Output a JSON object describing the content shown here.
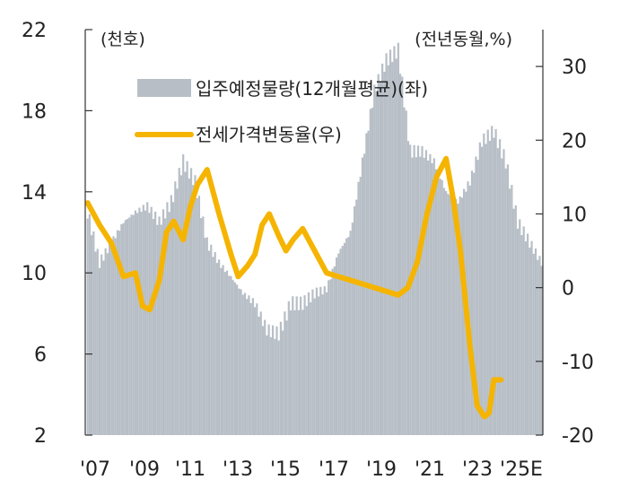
{
  "chart_data": {
    "type": "bar+line",
    "left_unit": "(천호)",
    "right_unit": "(전년동월,%)",
    "y_left": {
      "range": [
        2,
        22
      ],
      "ticks": [
        "22",
        "18",
        "14",
        "10",
        "6",
        "2"
      ]
    },
    "y_right": {
      "range": [
        -20,
        35
      ],
      "ticks": [
        "30",
        "20",
        "10",
        "0",
        "-10",
        "-20"
      ]
    },
    "x_tick_labels": [
      "'07",
      "'09",
      "'11",
      "'13",
      "'15",
      "'17",
      "'19",
      "'21",
      "'23",
      "'25E"
    ],
    "legend": {
      "bar_label": "입주예정물량(12개월평균)(좌)",
      "line_label": "전세가격변동율(우)"
    },
    "colors": {
      "bar": "#b7bec6",
      "line": "#f5b400"
    },
    "series": [
      {
        "name": "입주예정물량(12개월평균)(좌)",
        "axis": "left",
        "t": [
          2007.0,
          2007.5,
          2008.0,
          2008.5,
          2009.0,
          2009.5,
          2010.0,
          2010.5,
          2011.0,
          2011.5,
          2012.0,
          2012.5,
          2013.0,
          2013.5,
          2014.0,
          2014.5,
          2015.0,
          2015.5,
          2016.0,
          2016.5,
          2017.0,
          2017.5,
          2018.0,
          2018.5,
          2019.0,
          2019.5,
          2020.0,
          2020.5,
          2021.0,
          2021.5,
          2022.0,
          2022.5,
          2023.0,
          2023.5,
          2024.0,
          2024.5,
          2025.0,
          2025.5,
          2026.0
        ],
        "values": [
          13.0,
          10.5,
          11.5,
          12.5,
          13.0,
          13.3,
          12.5,
          13.5,
          15.5,
          14.5,
          11.5,
          10.5,
          9.8,
          9.0,
          8.5,
          7.2,
          7.0,
          8.5,
          8.5,
          9.0,
          9.2,
          11.0,
          12.0,
          15.5,
          19.0,
          20.5,
          21.0,
          16.0,
          16.0,
          15.5,
          14.0,
          13.5,
          14.5,
          16.5,
          17.0,
          15.5,
          12.5,
          11.5,
          10.5
        ]
      },
      {
        "name": "전세가격변동율(우)",
        "axis": "right",
        "t": [
          2007.0,
          2007.5,
          2008.0,
          2008.5,
          2009.0,
          2009.3,
          2009.6,
          2010.0,
          2010.3,
          2010.6,
          2011.0,
          2011.3,
          2011.6,
          2012.0,
          2012.5,
          2013.0,
          2013.3,
          2013.7,
          2014.0,
          2014.3,
          2014.6,
          2015.0,
          2015.3,
          2015.6,
          2016.0,
          2016.5,
          2017.0,
          2017.5,
          2018.0,
          2018.5,
          2019.0,
          2019.5,
          2020.0,
          2020.4,
          2020.8,
          2021.2,
          2021.6,
          2022.0,
          2022.3,
          2022.6,
          2023.0,
          2023.3,
          2023.6,
          2023.8,
          2024.0,
          2024.3
        ],
        "values": [
          11.5,
          8.5,
          6.0,
          1.5,
          2.0,
          -2.5,
          -3.0,
          1.0,
          7.5,
          9.0,
          6.5,
          11.0,
          14.0,
          16.0,
          10.0,
          4.5,
          1.5,
          3.0,
          4.5,
          8.5,
          10.0,
          7.0,
          5.0,
          6.5,
          8.0,
          5.0,
          2.0,
          1.5,
          1.0,
          0.5,
          0.0,
          -0.5,
          -1.0,
          0.0,
          3.5,
          10.0,
          15.0,
          17.5,
          12.0,
          5.0,
          -8.0,
          -16.0,
          -17.5,
          -17.0,
          -12.5,
          -12.5
        ]
      }
    ]
  }
}
